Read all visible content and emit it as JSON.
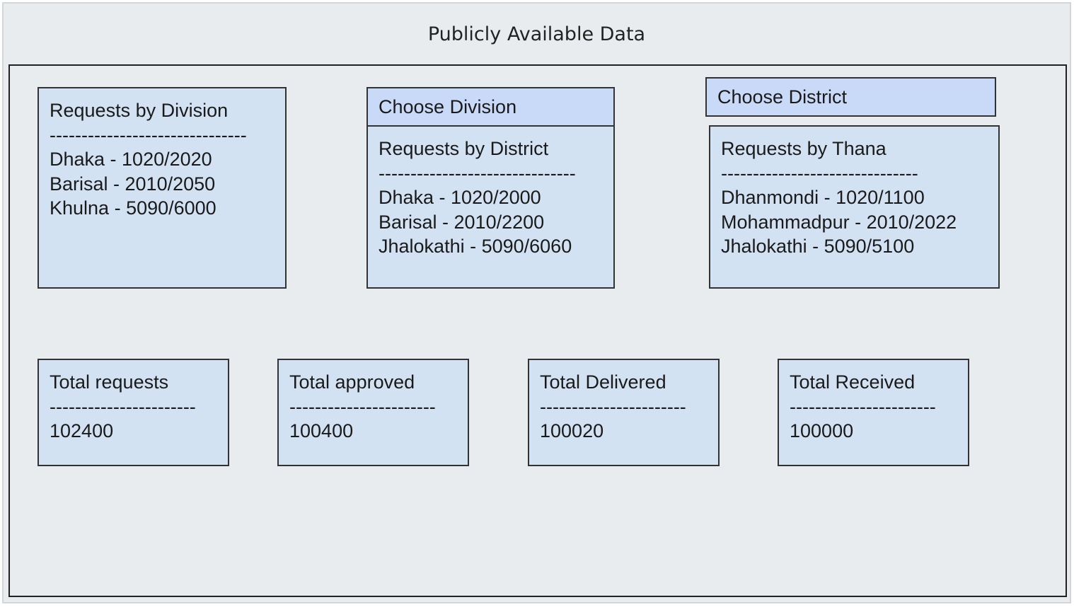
{
  "title": "Publicly Available Data",
  "division_box": {
    "heading": "Requests by Division",
    "divider": "-------------------------------",
    "rows": [
      "Dhaka - 1020/2020",
      "Barisal - 2010/2050",
      "Khulna - 5090/6000"
    ]
  },
  "division_select": {
    "label": "Choose Division"
  },
  "district_box": {
    "heading": "Requests by District",
    "divider": "-------------------------------",
    "rows": [
      "Dhaka - 1020/2000",
      "Barisal - 2010/2200",
      "Jhalokathi - 5090/6060"
    ]
  },
  "district_select": {
    "label": "Choose District"
  },
  "thana_box": {
    "heading": "Requests by Thana",
    "divider": "-------------------------------",
    "rows": [
      "Dhanmondi - 1020/1100",
      "Mohammadpur - 2010/2022",
      "Jhalokathi - 5090/5100"
    ]
  },
  "totals": [
    {
      "label": "Total requests",
      "divider": "-----------------------",
      "value": "102400"
    },
    {
      "label": "Total approved",
      "divider": "-----------------------",
      "value": "100400"
    },
    {
      "label": "Total Delivered",
      "divider": "-----------------------",
      "value": "100020"
    },
    {
      "label": "Total Received",
      "divider": "-----------------------",
      "value": "100000"
    }
  ]
}
